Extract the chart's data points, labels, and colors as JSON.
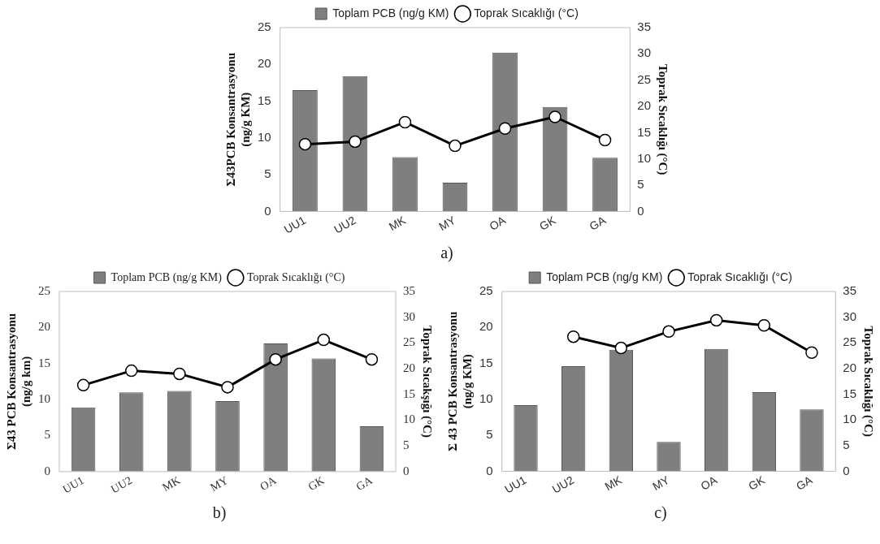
{
  "chart_data": [
    {
      "type": "bar",
      "categories": [
        "UU1",
        "UU2",
        "MK",
        "MY",
        "OA",
        "GK",
        "GA"
      ],
      "ylabel": "Σ43PCB Konsantrasyonu (ng/g KM)",
      "y2label": "Toprak Sıcaklığı (°C)",
      "ylim": [
        0,
        25
      ],
      "yticks": [
        0,
        5,
        10,
        15,
        20,
        25
      ],
      "y2lim": [
        0,
        35
      ],
      "y2ticks": [
        0,
        5,
        10,
        15,
        20,
        25,
        30,
        35
      ],
      "legend": "top",
      "marker": "circle",
      "annotations": [
        "a)"
      ],
      "series": [
        {
          "name": "Toplam PCB (ng/g KM)",
          "color": "#7f7f7f",
          "values": [
            16.5,
            18.4,
            7.4,
            3.9,
            21.6,
            14.2,
            7.3
          ]
        },
        {
          "name": "Toprak Sıcaklığı (°C)",
          "type": "line",
          "axis": "y2",
          "color": "#000000",
          "values": [
            12.8,
            13.3,
            17.0,
            12.5,
            15.8,
            18.0,
            13.6
          ]
        }
      ]
    },
    {
      "type": "bar",
      "categories": [
        "UU1",
        "UU2",
        "MK",
        "MY",
        "OA",
        "GK",
        "GA"
      ],
      "ylabel": "Σ43 PCB Konsantrasyonu (ng/g km)",
      "y2label": "Toprak Sıcakşığı (°C)",
      "ylim": [
        0,
        25
      ],
      "yticks": [
        0,
        5,
        10,
        15,
        20,
        25
      ],
      "y2lim": [
        0,
        35
      ],
      "y2ticks": [
        0,
        5,
        10,
        15,
        20,
        25,
        30,
        35
      ],
      "legend": "top",
      "marker": "circle",
      "annotations": [
        "b)"
      ],
      "series": [
        {
          "name": "Toplam PCB (ng/g KM)",
          "color": "#7f7f7f",
          "values": [
            8.9,
            11.0,
            11.2,
            9.8,
            17.8,
            15.7,
            6.3
          ]
        },
        {
          "name": "Toprak Sıcaklığı (°C)",
          "type": "line",
          "axis": "y2",
          "color": "#000000",
          "values": [
            16.8,
            19.6,
            19.0,
            16.4,
            21.8,
            25.6,
            21.8
          ]
        }
      ]
    },
    {
      "type": "bar",
      "categories": [
        "UU1",
        "UU2",
        "MK",
        "MY",
        "OA",
        "GK",
        "GA"
      ],
      "ylabel": "Σ 43 PCB Konsantrasyonu (ng/g KM)",
      "y2label": "Toprak Sıcaklığı (°C)",
      "ylim": [
        0,
        25
      ],
      "yticks": [
        0,
        5,
        10,
        15,
        20,
        25
      ],
      "y2lim": [
        0,
        35
      ],
      "y2ticks": [
        0,
        5,
        10,
        15,
        20,
        25,
        30,
        35
      ],
      "legend": "top",
      "marker": "circle",
      "annotations": [
        "c)"
      ],
      "series": [
        {
          "name": "Toplam PCB (ng/g KM)",
          "color": "#7f7f7f",
          "values": [
            9.2,
            14.6,
            16.9,
            4.1,
            17.0,
            11.0,
            8.6
          ]
        },
        {
          "name": "Toprak Sıcaklığı (°C)",
          "type": "line",
          "axis": "y2",
          "color": "#000000",
          "values": [
            null,
            26.2,
            24.0,
            27.2,
            29.4,
            28.4,
            23.1
          ]
        }
      ]
    }
  ]
}
